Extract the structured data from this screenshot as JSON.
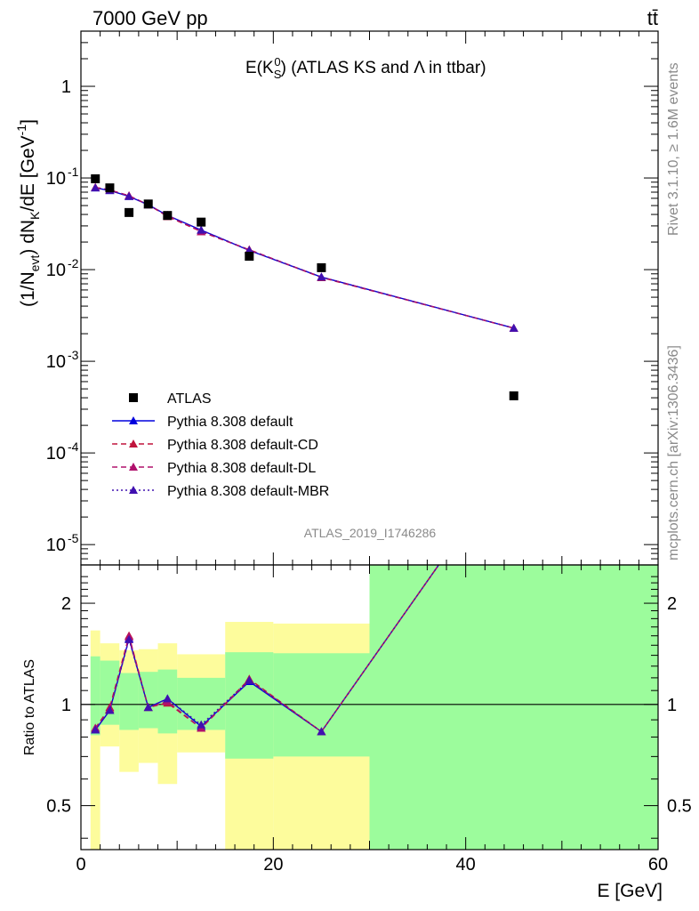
{
  "header": {
    "left": "7000 GeV pp",
    "right": "tt̄"
  },
  "side_labels": {
    "rivet": "Rivet 3.1.10, ≥ 1.6M events",
    "mcplots": "mcplots.cern.ch [arXiv:1306.3436]"
  },
  "chart_data": [
    {
      "type": "scatter",
      "title": "E(K_S^0) (ATLAS KS and Λ in ttbar)",
      "title_parts": {
        "pre": "E(K",
        "sub": "S",
        "sup": "0",
        "post": ") (ATLAS KS and Λ in ttbar)"
      },
      "analysis_tag": "ATLAS_2019_I1746286",
      "ylabel": "(1/N_evt) dN_K/dE [GeV^-1]",
      "xlabel": "",
      "y_scale": "log",
      "xlim": [
        0,
        60
      ],
      "ylim": [
        6e-06,
        4
      ],
      "y_ticks": [
        {
          "value": 1,
          "label": "1"
        },
        {
          "value": 0.1,
          "label": "10",
          "exp": "-1"
        },
        {
          "value": 0.01,
          "label": "10",
          "exp": "-2"
        },
        {
          "value": 0.001,
          "label": "10",
          "exp": "-3"
        },
        {
          "value": 0.0001,
          "label": "10",
          "exp": "-4"
        },
        {
          "value": 1e-05,
          "label": "10",
          "exp": "-5"
        }
      ],
      "legend_position": "bottom-left",
      "series": [
        {
          "name": "ATLAS",
          "marker": "square",
          "color": "#000000",
          "x": [
            1.5,
            3.0,
            5.0,
            7.0,
            9.0,
            12.5,
            17.5,
            25.0,
            45.0
          ],
          "values": [
            0.098,
            0.078,
            0.042,
            0.052,
            0.039,
            0.033,
            0.014,
            0.0105,
            0.00042
          ]
        },
        {
          "name": "Pythia 8.308 default",
          "marker": "triangle",
          "line": "solid",
          "color": "#0000dd",
          "x": [
            1.5,
            3.0,
            5.0,
            7.0,
            9.0,
            12.5,
            17.5,
            25.0,
            45.0
          ],
          "values": [
            0.078,
            0.073,
            0.063,
            0.051,
            0.039,
            0.027,
            0.0162,
            0.0083,
            0.0023
          ]
        },
        {
          "name": "Pythia 8.308 default-CD",
          "marker": "triangle",
          "line": "dashed",
          "color": "#c0143c",
          "x": [
            1.5,
            3.0,
            5.0,
            7.0,
            9.0,
            12.5,
            17.5,
            25.0,
            45.0
          ],
          "values": [
            0.079,
            0.074,
            0.064,
            0.051,
            0.038,
            0.026,
            0.0165,
            0.0082,
            0.0023
          ]
        },
        {
          "name": "Pythia 8.308 default-DL",
          "marker": "triangle",
          "line": "dashed",
          "color": "#b0106c",
          "x": [
            1.5,
            3.0,
            5.0,
            7.0,
            9.0,
            12.5,
            17.5,
            25.0,
            45.0
          ],
          "values": [
            0.079,
            0.074,
            0.064,
            0.051,
            0.039,
            0.026,
            0.0164,
            0.0083,
            0.0023
          ]
        },
        {
          "name": "Pythia 8.308 default-MBR",
          "marker": "triangle",
          "line": "dotted",
          "color": "#4010b0",
          "x": [
            1.5,
            3.0,
            5.0,
            7.0,
            9.0,
            12.5,
            17.5,
            25.0,
            45.0
          ],
          "values": [
            0.078,
            0.073,
            0.063,
            0.051,
            0.039,
            0.027,
            0.0163,
            0.0083,
            0.0023
          ]
        }
      ]
    },
    {
      "type": "line",
      "ylabel": "Ratio to ATLAS",
      "xlabel": "E [GeV]",
      "y_scale": "log",
      "xlim": [
        0,
        60
      ],
      "ylim": [
        0.37,
        2.6
      ],
      "x_ticks": [
        0,
        20,
        40,
        60
      ],
      "y_ticks": [
        {
          "value": 0.5,
          "label": "0.5"
        },
        {
          "value": 1,
          "label": "1"
        },
        {
          "value": 2,
          "label": "2"
        }
      ],
      "reference_line": 1,
      "bins": [
        {
          "lo": 1.0,
          "hi": 2.0,
          "stat": [
            0.81,
            1.39
          ],
          "total": [
            0.36,
            1.66
          ]
        },
        {
          "lo": 2.0,
          "hi": 4.0,
          "stat": [
            0.87,
            1.35
          ],
          "total": [
            0.75,
            1.52
          ]
        },
        {
          "lo": 4.0,
          "hi": 6.0,
          "stat": [
            0.84,
            1.24
          ],
          "total": [
            0.63,
            1.45
          ]
        },
        {
          "lo": 6.0,
          "hi": 8.0,
          "stat": [
            0.85,
            1.25
          ],
          "total": [
            0.67,
            1.46
          ]
        },
        {
          "lo": 8.0,
          "hi": 10.0,
          "stat": [
            0.82,
            1.27
          ],
          "total": [
            0.58,
            1.52
          ]
        },
        {
          "lo": 10.0,
          "hi": 15.0,
          "stat": [
            0.84,
            1.2
          ],
          "total": [
            0.72,
            1.41
          ]
        },
        {
          "lo": 15.0,
          "hi": 20.0,
          "stat": [
            0.69,
            1.43
          ],
          "total": [
            0.37,
            1.76
          ]
        },
        {
          "lo": 20.0,
          "hi": 30.0,
          "stat": [
            0.7,
            1.42
          ],
          "total": [
            0.37,
            1.74
          ]
        },
        {
          "lo": 30.0,
          "hi": 60.0,
          "stat": [
            0.37,
            2.6
          ],
          "total": [
            0.37,
            2.6
          ]
        }
      ],
      "series": [
        {
          "name": "Pythia 8.308 default",
          "color": "#0000dd",
          "line": "solid",
          "x": [
            1.5,
            3.0,
            5.0,
            7.0,
            9.0,
            12.5,
            17.5,
            25.0,
            45.0
          ],
          "values": [
            0.84,
            0.96,
            1.57,
            0.98,
            1.04,
            0.86,
            1.17,
            0.83,
            5.4
          ]
        },
        {
          "name": "Pythia 8.308 default-CD",
          "color": "#c0143c",
          "line": "dashed",
          "x": [
            1.5,
            3.0,
            5.0,
            7.0,
            9.0,
            12.5,
            17.5,
            25.0,
            45.0
          ],
          "values": [
            0.85,
            0.98,
            1.6,
            0.98,
            1.01,
            0.85,
            1.19,
            0.83,
            5.4
          ]
        },
        {
          "name": "Pythia 8.308 default-DL",
          "color": "#b0106c",
          "line": "dashed",
          "x": [
            1.5,
            3.0,
            5.0,
            7.0,
            9.0,
            12.5,
            17.5,
            25.0,
            45.0
          ],
          "values": [
            0.85,
            0.97,
            1.59,
            0.98,
            1.02,
            0.85,
            1.18,
            0.83,
            5.4
          ]
        },
        {
          "name": "Pythia 8.308 default-MBR",
          "color": "#4010b0",
          "line": "dotted",
          "x": [
            1.5,
            3.0,
            5.0,
            7.0,
            9.0,
            12.5,
            17.5,
            25.0,
            45.0
          ],
          "values": [
            0.84,
            0.96,
            1.56,
            0.98,
            1.04,
            0.87,
            1.18,
            0.83,
            5.4
          ]
        }
      ],
      "band_colors": {
        "stat": "#9cfc9c",
        "total": "#fdfc9c"
      }
    }
  ]
}
